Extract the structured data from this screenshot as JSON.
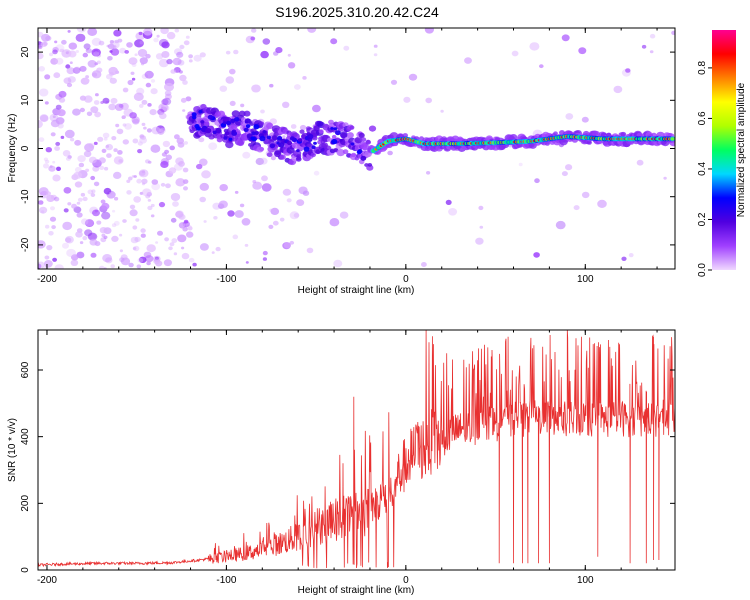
{
  "title": "S196.2025.310.20.42.C24",
  "colors": {
    "snr_line": "#e83030",
    "frame": "#000000",
    "colorbar_stops": [
      "#f0d8ff",
      "#a040ff",
      "#5000e0",
      "#0000ff",
      "#00d8ff",
      "#00ff60",
      "#b0ff00",
      "#ffff00",
      "#ff8000",
      "#ff0000",
      "#ff0090"
    ]
  },
  "chart_data": [
    {
      "type": "heatmap",
      "name": "spectrogram",
      "xlabel": "Height of straight line (km)",
      "ylabel": "Frequency (Hz)",
      "xlim": [
        -205,
        150
      ],
      "ylim": [
        -25,
        25
      ],
      "xticks": [
        -200,
        -100,
        0,
        100
      ],
      "yticks": [
        -20,
        -10,
        0,
        10,
        20
      ],
      "trace_points": [
        {
          "x": -118,
          "y": 6
        },
        {
          "x": -110,
          "y": 5.5
        },
        {
          "x": -100,
          "y": 3.5
        },
        {
          "x": -90,
          "y": 4.5
        },
        {
          "x": -80,
          "y": 2
        },
        {
          "x": -70,
          "y": 1
        },
        {
          "x": -60,
          "y": 0
        },
        {
          "x": -50,
          "y": 2
        },
        {
          "x": -40,
          "y": 2.5
        },
        {
          "x": -30,
          "y": 1.5
        },
        {
          "x": -20,
          "y": -1
        },
        {
          "x": -10,
          "y": 1.5
        },
        {
          "x": 0,
          "y": 2
        },
        {
          "x": 10,
          "y": 1
        },
        {
          "x": 30,
          "y": 1
        },
        {
          "x": 50,
          "y": 1.2
        },
        {
          "x": 70,
          "y": 1.5
        },
        {
          "x": 90,
          "y": 2.5
        },
        {
          "x": 110,
          "y": 2
        },
        {
          "x": 150,
          "y": 2
        }
      ],
      "colorbar": {
        "label": "Normalized spectral amplitude",
        "range": [
          0,
          0.95
        ],
        "ticks": [
          0.0,
          0.2,
          0.4,
          0.6,
          0.8
        ]
      }
    },
    {
      "type": "line",
      "name": "snr",
      "xlabel": "Height of straight line (km)",
      "ylabel": "SNR (10 * v/v)",
      "xlim": [
        -205,
        150
      ],
      "ylim": [
        0,
        720
      ],
      "xticks": [
        -200,
        -100,
        0,
        100
      ],
      "yticks": [
        0,
        200,
        400,
        600
      ],
      "series": [
        {
          "name": "SNR",
          "x": [
            -205,
            -190,
            -170,
            -150,
            -130,
            -115,
            -100,
            -85,
            -70,
            -55,
            -45,
            -35,
            -25,
            -15,
            -8,
            0,
            5,
            10,
            15,
            20,
            25,
            30,
            40,
            50,
            60,
            70,
            80,
            90,
            100,
            110,
            120,
            130,
            140,
            150
          ],
          "y": [
            15,
            18,
            20,
            20,
            22,
            30,
            40,
            55,
            80,
            110,
            140,
            160,
            180,
            200,
            250,
            320,
            350,
            370,
            380,
            390,
            410,
            420,
            430,
            440,
            450,
            455,
            460,
            450,
            455,
            450,
            455,
            450,
            455,
            460
          ]
        }
      ],
      "spikes": [
        {
          "x": -35,
          "y": 320
        },
        {
          "x": -29,
          "y": 520
        },
        {
          "x": 48,
          "y": 660
        },
        {
          "x": 57,
          "y": 700
        },
        {
          "x": 90,
          "y": 720
        },
        {
          "x": 138,
          "y": 700
        }
      ],
      "dropouts": [
        {
          "x": 52,
          "y": 20
        },
        {
          "x": 60,
          "y": 20
        },
        {
          "x": 65,
          "y": 20
        },
        {
          "x": 68,
          "y": 20
        },
        {
          "x": 74,
          "y": 20
        },
        {
          "x": 80,
          "y": 20
        },
        {
          "x": 107,
          "y": 40
        },
        {
          "x": 125,
          "y": 20
        },
        {
          "x": 134,
          "y": 20
        },
        {
          "x": 138,
          "y": 30
        },
        {
          "x": 141,
          "y": 30
        }
      ]
    }
  ]
}
